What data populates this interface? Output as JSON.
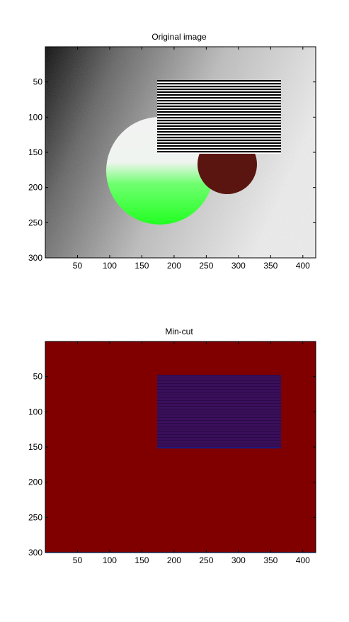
{
  "chart_data": [
    {
      "type": "image",
      "title": "Original image",
      "xlim": [
        0,
        420
      ],
      "ylim": [
        300,
        0
      ],
      "xticks": [
        50,
        100,
        150,
        200,
        250,
        300,
        350,
        400
      ],
      "yticks": [
        50,
        100,
        150,
        200,
        250,
        300
      ],
      "xlabel": "",
      "ylabel": "",
      "content": {
        "background": "grayscale gradient, dark at top-left to light at bottom-right",
        "stripe_rectangle": {
          "x": [
            175,
            365
          ],
          "y": [
            47,
            152
          ],
          "pattern": "alternating black and white horizontal stripes",
          "stripe_count": 26
        },
        "circle_large": {
          "center": [
            178,
            175
          ],
          "radius": 75,
          "colors": [
            "#ffffff",
            "#33ff33"
          ]
        },
        "circle_small": {
          "center": [
            283,
            168
          ],
          "radius": 45,
          "color": "#5a1510"
        }
      }
    },
    {
      "type": "image",
      "title": "Min-cut",
      "xlim": [
        0,
        420
      ],
      "ylim": [
        300,
        0
      ],
      "xticks": [
        50,
        100,
        150,
        200,
        250,
        300,
        350,
        400
      ],
      "yticks": [
        50,
        100,
        150,
        200,
        250,
        300
      ],
      "xlabel": "",
      "ylabel": "",
      "content": {
        "background_label_color": "#800000",
        "foreground_region": {
          "x": [
            175,
            365
          ],
          "y": [
            47,
            152
          ],
          "color": "#3a0f5a"
        },
        "bottom_line_color": "#1a1a80"
      }
    }
  ],
  "colors": {
    "maroon": "#800000",
    "purple": "#3a0f5a",
    "green": "#33ff33",
    "brown": "#5a1510"
  }
}
